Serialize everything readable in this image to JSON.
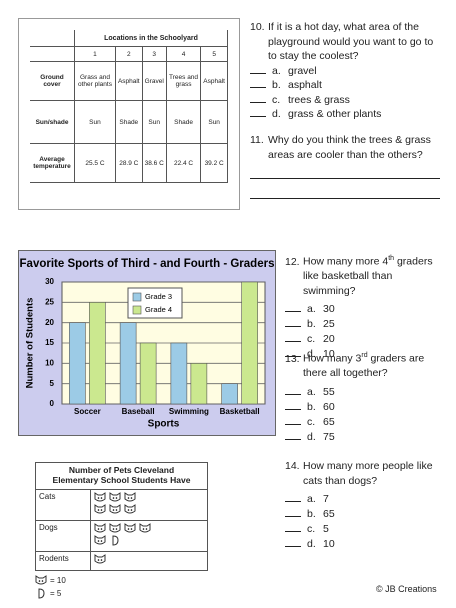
{
  "locations_table": {
    "title": "Locations in the Schoolyard",
    "column_headers": [
      "1",
      "2",
      "3",
      "4",
      "5"
    ],
    "rows": [
      {
        "label": "Ground cover",
        "cells": [
          "Grass and other plants",
          "Asphalt",
          "Gravel",
          "Trees and grass",
          "Asphalt"
        ]
      },
      {
        "label": "Sun/shade",
        "cells": [
          "Sun",
          "Shade",
          "Sun",
          "Shade",
          "Sun"
        ]
      },
      {
        "label": "Average temperature",
        "cells": [
          "25.5 C",
          "28.9 C",
          "38.6 C",
          "22.4 C",
          "39.2 C"
        ]
      }
    ]
  },
  "questions": [
    {
      "number": "10.",
      "text": [
        "If it is a hot day, what area of the playground would you want to go to to stay the coolest?"
      ],
      "options": [
        {
          "letter": "a.",
          "text": "gravel"
        },
        {
          "letter": "b.",
          "text": "asphalt"
        },
        {
          "letter": "c.",
          "text": "trees & grass"
        },
        {
          "letter": "d.",
          "text": "grass & other plants"
        }
      ]
    },
    {
      "number": "11.",
      "text": [
        "Why do you think the trees & grass areas are cooler than the others?"
      ],
      "options": []
    },
    {
      "number": "12.",
      "text": [
        "How many more 4",
        "th",
        " graders like basketball than swimming?"
      ],
      "options": [
        {
          "letter": "a.",
          "text": "30"
        },
        {
          "letter": "b.",
          "text": "25"
        },
        {
          "letter": "c.",
          "text": "20"
        },
        {
          "letter": "d.",
          "text": "10"
        }
      ]
    },
    {
      "number": "13.",
      "text": [
        "How many 3",
        "rd",
        " graders are there all together?"
      ],
      "options": [
        {
          "letter": "a.",
          "text": "55"
        },
        {
          "letter": "b.",
          "text": "60"
        },
        {
          "letter": "c.",
          "text": "65"
        },
        {
          "letter": "d.",
          "text": "75"
        }
      ]
    },
    {
      "number": "14.",
      "text": [
        "How many more people like cats than dogs?"
      ],
      "options": [
        {
          "letter": "a.",
          "text": "7"
        },
        {
          "letter": "b.",
          "text": "65"
        },
        {
          "letter": "c.",
          "text": "5"
        },
        {
          "letter": "d.",
          "text": "10"
        }
      ]
    }
  ],
  "chart": {
    "type": "bar",
    "title": "Favorite Sports of Third - and Fourth - Graders",
    "categories": [
      "Soccer",
      "Baseball",
      "Swimming",
      "Basketball"
    ],
    "series": [
      {
        "name": "Grade 3",
        "color": "#9ccbe6",
        "values": [
          20,
          20,
          15,
          5
        ]
      },
      {
        "name": "Grade 4",
        "color": "#cbe88f",
        "values": [
          25,
          15,
          10,
          30
        ]
      }
    ],
    "ylim": [
      0,
      30
    ],
    "yticks": [
      0,
      5,
      10,
      15,
      20,
      25,
      30
    ],
    "xlabel": "Sports",
    "ylabel": "Number of Students",
    "grid": true
  },
  "pictograph": {
    "title": [
      "Number of Pets Cleveland",
      "Elementary School Students Have"
    ],
    "rows": [
      "Cats",
      "Dogs",
      "Rodents"
    ],
    "key": [
      "= 10",
      "= 5"
    ]
  },
  "footer": "© JB Creations"
}
